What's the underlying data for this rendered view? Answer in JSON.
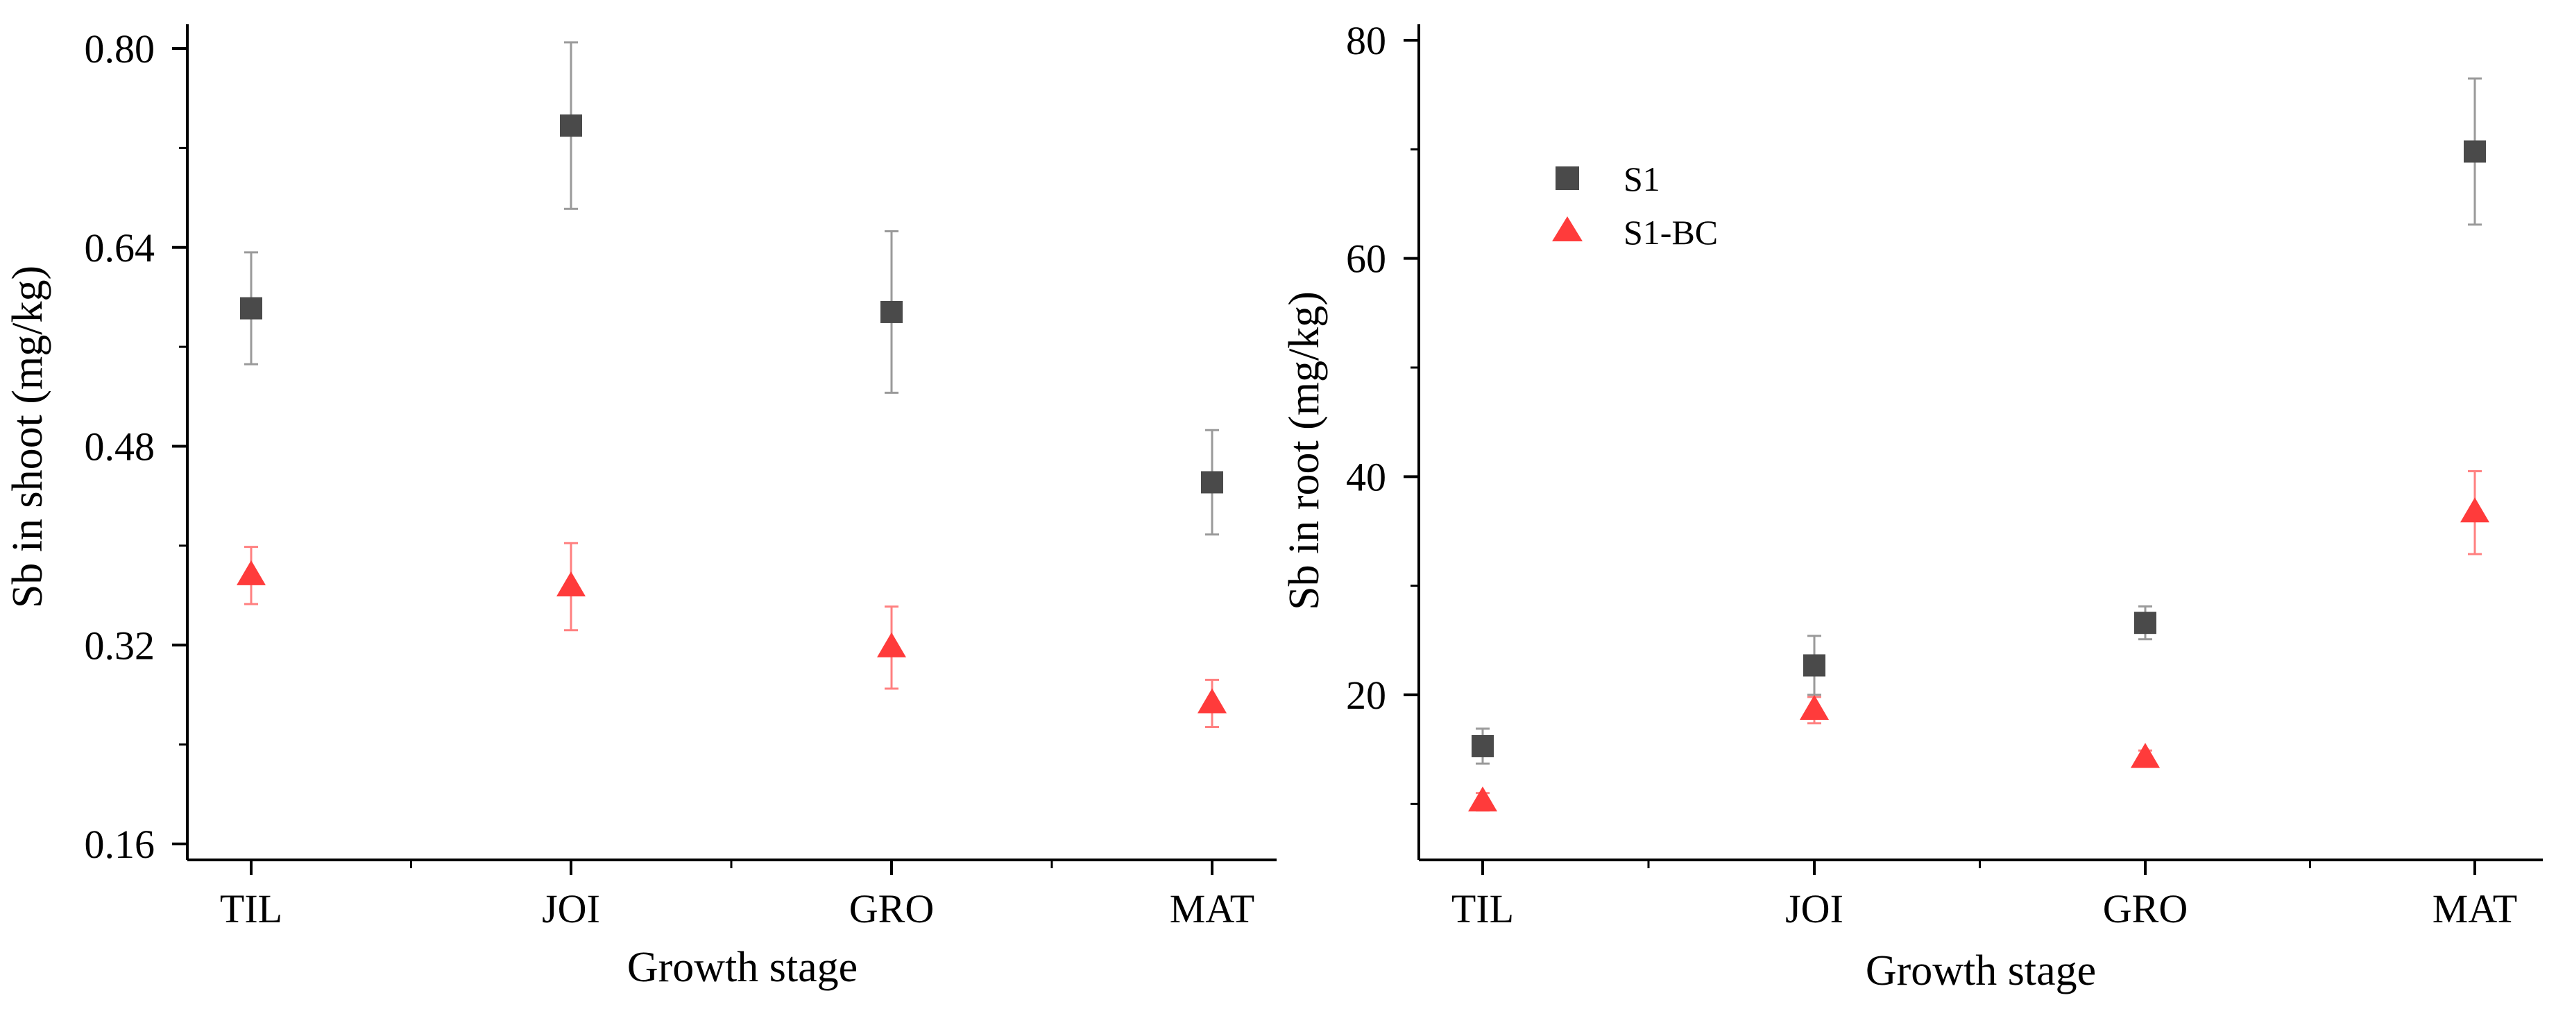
{
  "chart_data": [
    {
      "type": "scatter",
      "xlabel": "Growth stage",
      "ylabel": "Sb in shoot (mg/kg)",
      "categories": [
        "TIL",
        "JOI",
        "GRO",
        "MAT"
      ],
      "ylim": [
        0.14,
        0.82
      ],
      "yticks": [
        0.16,
        0.32,
        0.48,
        0.64,
        0.8
      ],
      "ytick_labels": [
        "0.16",
        "0.32",
        "0.48",
        "0.64",
        "0.80"
      ],
      "series": [
        {
          "name": "S1",
          "marker": "square",
          "color": "#4a4a4a",
          "error_color": "#9a9a9a",
          "values": [
            0.591,
            0.738,
            0.588,
            0.451
          ],
          "errors": [
            0.045,
            0.067,
            0.065,
            0.042
          ]
        },
        {
          "name": "S1-BC",
          "marker": "triangle",
          "color": "#ff3b3b",
          "error_color": "#ff8080",
          "values": [
            0.376,
            0.367,
            0.318,
            0.273
          ],
          "errors": [
            0.023,
            0.035,
            0.033,
            0.019
          ]
        }
      ]
    },
    {
      "type": "scatter",
      "xlabel": "Growth stage",
      "ylabel": "Sb in root (mg/kg)",
      "categories": [
        "TIL",
        "JOI",
        "GRO",
        "MAT"
      ],
      "ylim": [
        5,
        80
      ],
      "yticks": [
        20,
        40,
        60,
        80
      ],
      "ytick_labels": [
        "20",
        "40",
        "60",
        "80"
      ],
      "legend": {
        "position": "upper-left",
        "entries": [
          "S1",
          "S1-BC"
        ]
      },
      "series": [
        {
          "name": "S1",
          "marker": "square",
          "color": "#4a4a4a",
          "error_color": "#9a9a9a",
          "values": [
            15.3,
            22.7,
            26.6,
            69.8
          ],
          "errors": [
            1.6,
            2.7,
            1.5,
            6.7
          ]
        },
        {
          "name": "S1-BC",
          "marker": "triangle",
          "color": "#ff3b3b",
          "error_color": "#ff8080",
          "values": [
            10.2,
            18.6,
            14.2,
            36.7
          ],
          "errors": [
            0.8,
            1.2,
            0.7,
            3.8
          ]
        }
      ]
    }
  ]
}
